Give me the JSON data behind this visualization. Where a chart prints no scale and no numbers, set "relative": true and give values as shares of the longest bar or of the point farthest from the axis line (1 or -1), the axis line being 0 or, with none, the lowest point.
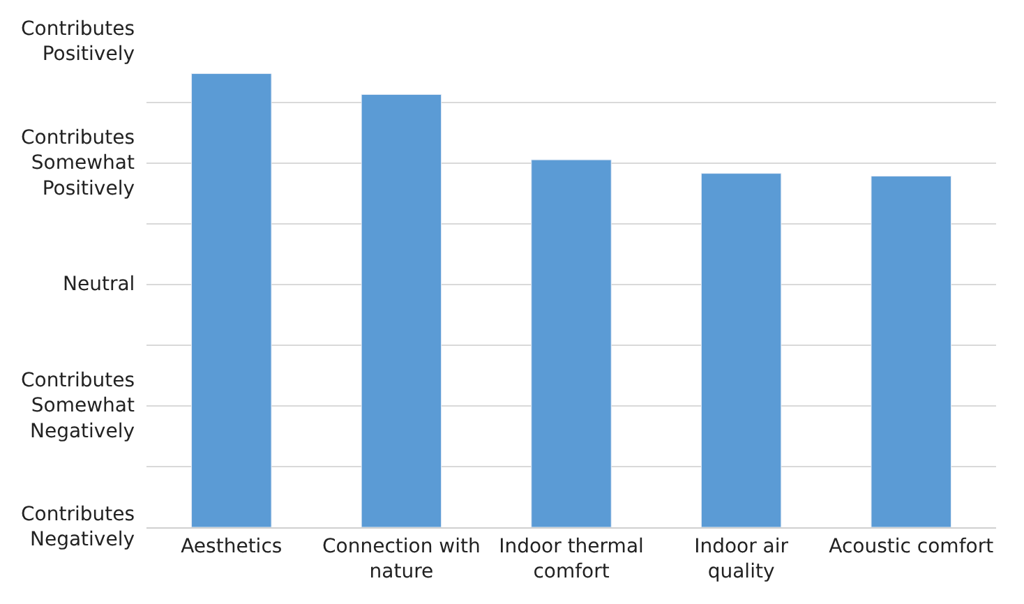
{
  "chart_data": {
    "type": "bar",
    "categories": [
      "Aesthetics",
      "Connection with nature",
      "Indoor thermal comfort",
      "Indoor air quality",
      "Acoustic comfort"
    ],
    "values": [
      1,
      0.954,
      0.81,
      0.78,
      0.774
    ],
    "relative": true,
    "color": "#5b9bd5",
    "annotations": [
      "Contributes Positively",
      "Contributes Somewhat Positively",
      "Neutral",
      "Contributes Somewhat Negatively",
      "Contributes Negatively"
    ],
    "grid": true
  }
}
